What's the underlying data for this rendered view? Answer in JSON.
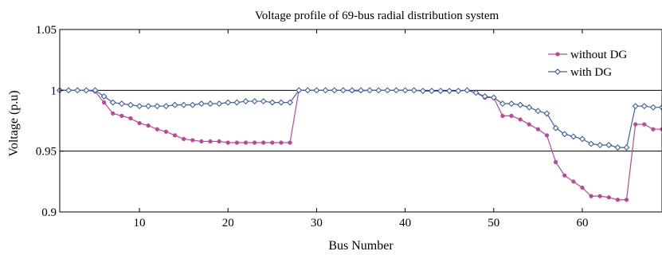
{
  "chart_data": {
    "type": "line",
    "title": "Voltage profile of 69-bus radial distribution system",
    "xlabel": "Bus Number",
    "ylabel": "Voltage (p.u)",
    "xlim": [
      1,
      69
    ],
    "ylim": [
      0.9,
      1.05
    ],
    "xticks": [
      10,
      20,
      30,
      40,
      50,
      60
    ],
    "yticks": [
      0.9,
      0.95,
      1,
      1.05
    ],
    "ytick_labels": [
      "0.9",
      "0.95",
      "1",
      "1.05"
    ],
    "grid": "horizontal",
    "legend_position": "top-right",
    "series": [
      {
        "name": "without DG",
        "color": "#c2449a",
        "marker": "circle",
        "x": [
          1,
          2,
          3,
          4,
          5,
          6,
          7,
          8,
          9,
          10,
          11,
          12,
          13,
          14,
          15,
          16,
          17,
          18,
          19,
          20,
          21,
          22,
          23,
          24,
          25,
          26,
          27,
          28,
          29,
          30,
          31,
          32,
          33,
          34,
          35,
          36,
          37,
          38,
          39,
          40,
          41,
          42,
          43,
          44,
          45,
          46,
          47,
          48,
          49,
          50,
          51,
          52,
          53,
          54,
          55,
          56,
          57,
          58,
          59,
          60,
          61,
          62,
          63,
          64,
          65,
          66,
          67,
          68,
          69
        ],
        "values": [
          1.0,
          1.0,
          1.0,
          1.0,
          0.999,
          0.99,
          0.981,
          0.979,
          0.977,
          0.973,
          0.971,
          0.968,
          0.966,
          0.963,
          0.96,
          0.959,
          0.958,
          0.958,
          0.958,
          0.957,
          0.957,
          0.957,
          0.957,
          0.957,
          0.957,
          0.957,
          0.957,
          1.0,
          1.0,
          1.0,
          1.0,
          1.0,
          1.0,
          0.9995,
          0.9995,
          1.0,
          1.0,
          1.0,
          1.0,
          1.0,
          1.0,
          0.9995,
          0.9995,
          0.9995,
          0.9995,
          0.9995,
          1.0,
          0.998,
          0.994,
          0.994,
          0.979,
          0.979,
          0.976,
          0.972,
          0.968,
          0.963,
          0.941,
          0.93,
          0.925,
          0.92,
          0.913,
          0.913,
          0.912,
          0.91,
          0.91,
          0.972,
          0.972,
          0.968,
          0.968
        ]
      },
      {
        "name": "with DG",
        "color": "#3a5fa8",
        "marker": "diamond",
        "x": [
          1,
          2,
          3,
          4,
          5,
          6,
          7,
          8,
          9,
          10,
          11,
          12,
          13,
          14,
          15,
          16,
          17,
          18,
          19,
          20,
          21,
          22,
          23,
          24,
          25,
          26,
          27,
          28,
          29,
          30,
          31,
          32,
          33,
          34,
          35,
          36,
          37,
          38,
          39,
          40,
          41,
          42,
          43,
          44,
          45,
          46,
          47,
          48,
          49,
          50,
          51,
          52,
          53,
          54,
          55,
          56,
          57,
          58,
          59,
          60,
          61,
          62,
          63,
          64,
          65,
          66,
          67,
          68,
          69
        ],
        "values": [
          1.0,
          1.0,
          1.0,
          1.0,
          1.0,
          0.995,
          0.99,
          0.989,
          0.988,
          0.987,
          0.987,
          0.987,
          0.987,
          0.988,
          0.988,
          0.988,
          0.989,
          0.989,
          0.989,
          0.99,
          0.99,
          0.991,
          0.991,
          0.991,
          0.99,
          0.99,
          0.99,
          1.0,
          1.0,
          1.0,
          1.0,
          1.0,
          1.0,
          1.0,
          1.0,
          1.0,
          1.0,
          1.0,
          1.0,
          1.0,
          1.0,
          0.9995,
          0.9995,
          0.9995,
          0.9995,
          0.9995,
          1.0,
          0.998,
          0.995,
          0.994,
          0.989,
          0.989,
          0.988,
          0.986,
          0.983,
          0.981,
          0.969,
          0.964,
          0.962,
          0.96,
          0.956,
          0.955,
          0.955,
          0.953,
          0.953,
          0.987,
          0.987,
          0.986,
          0.986
        ]
      }
    ]
  }
}
